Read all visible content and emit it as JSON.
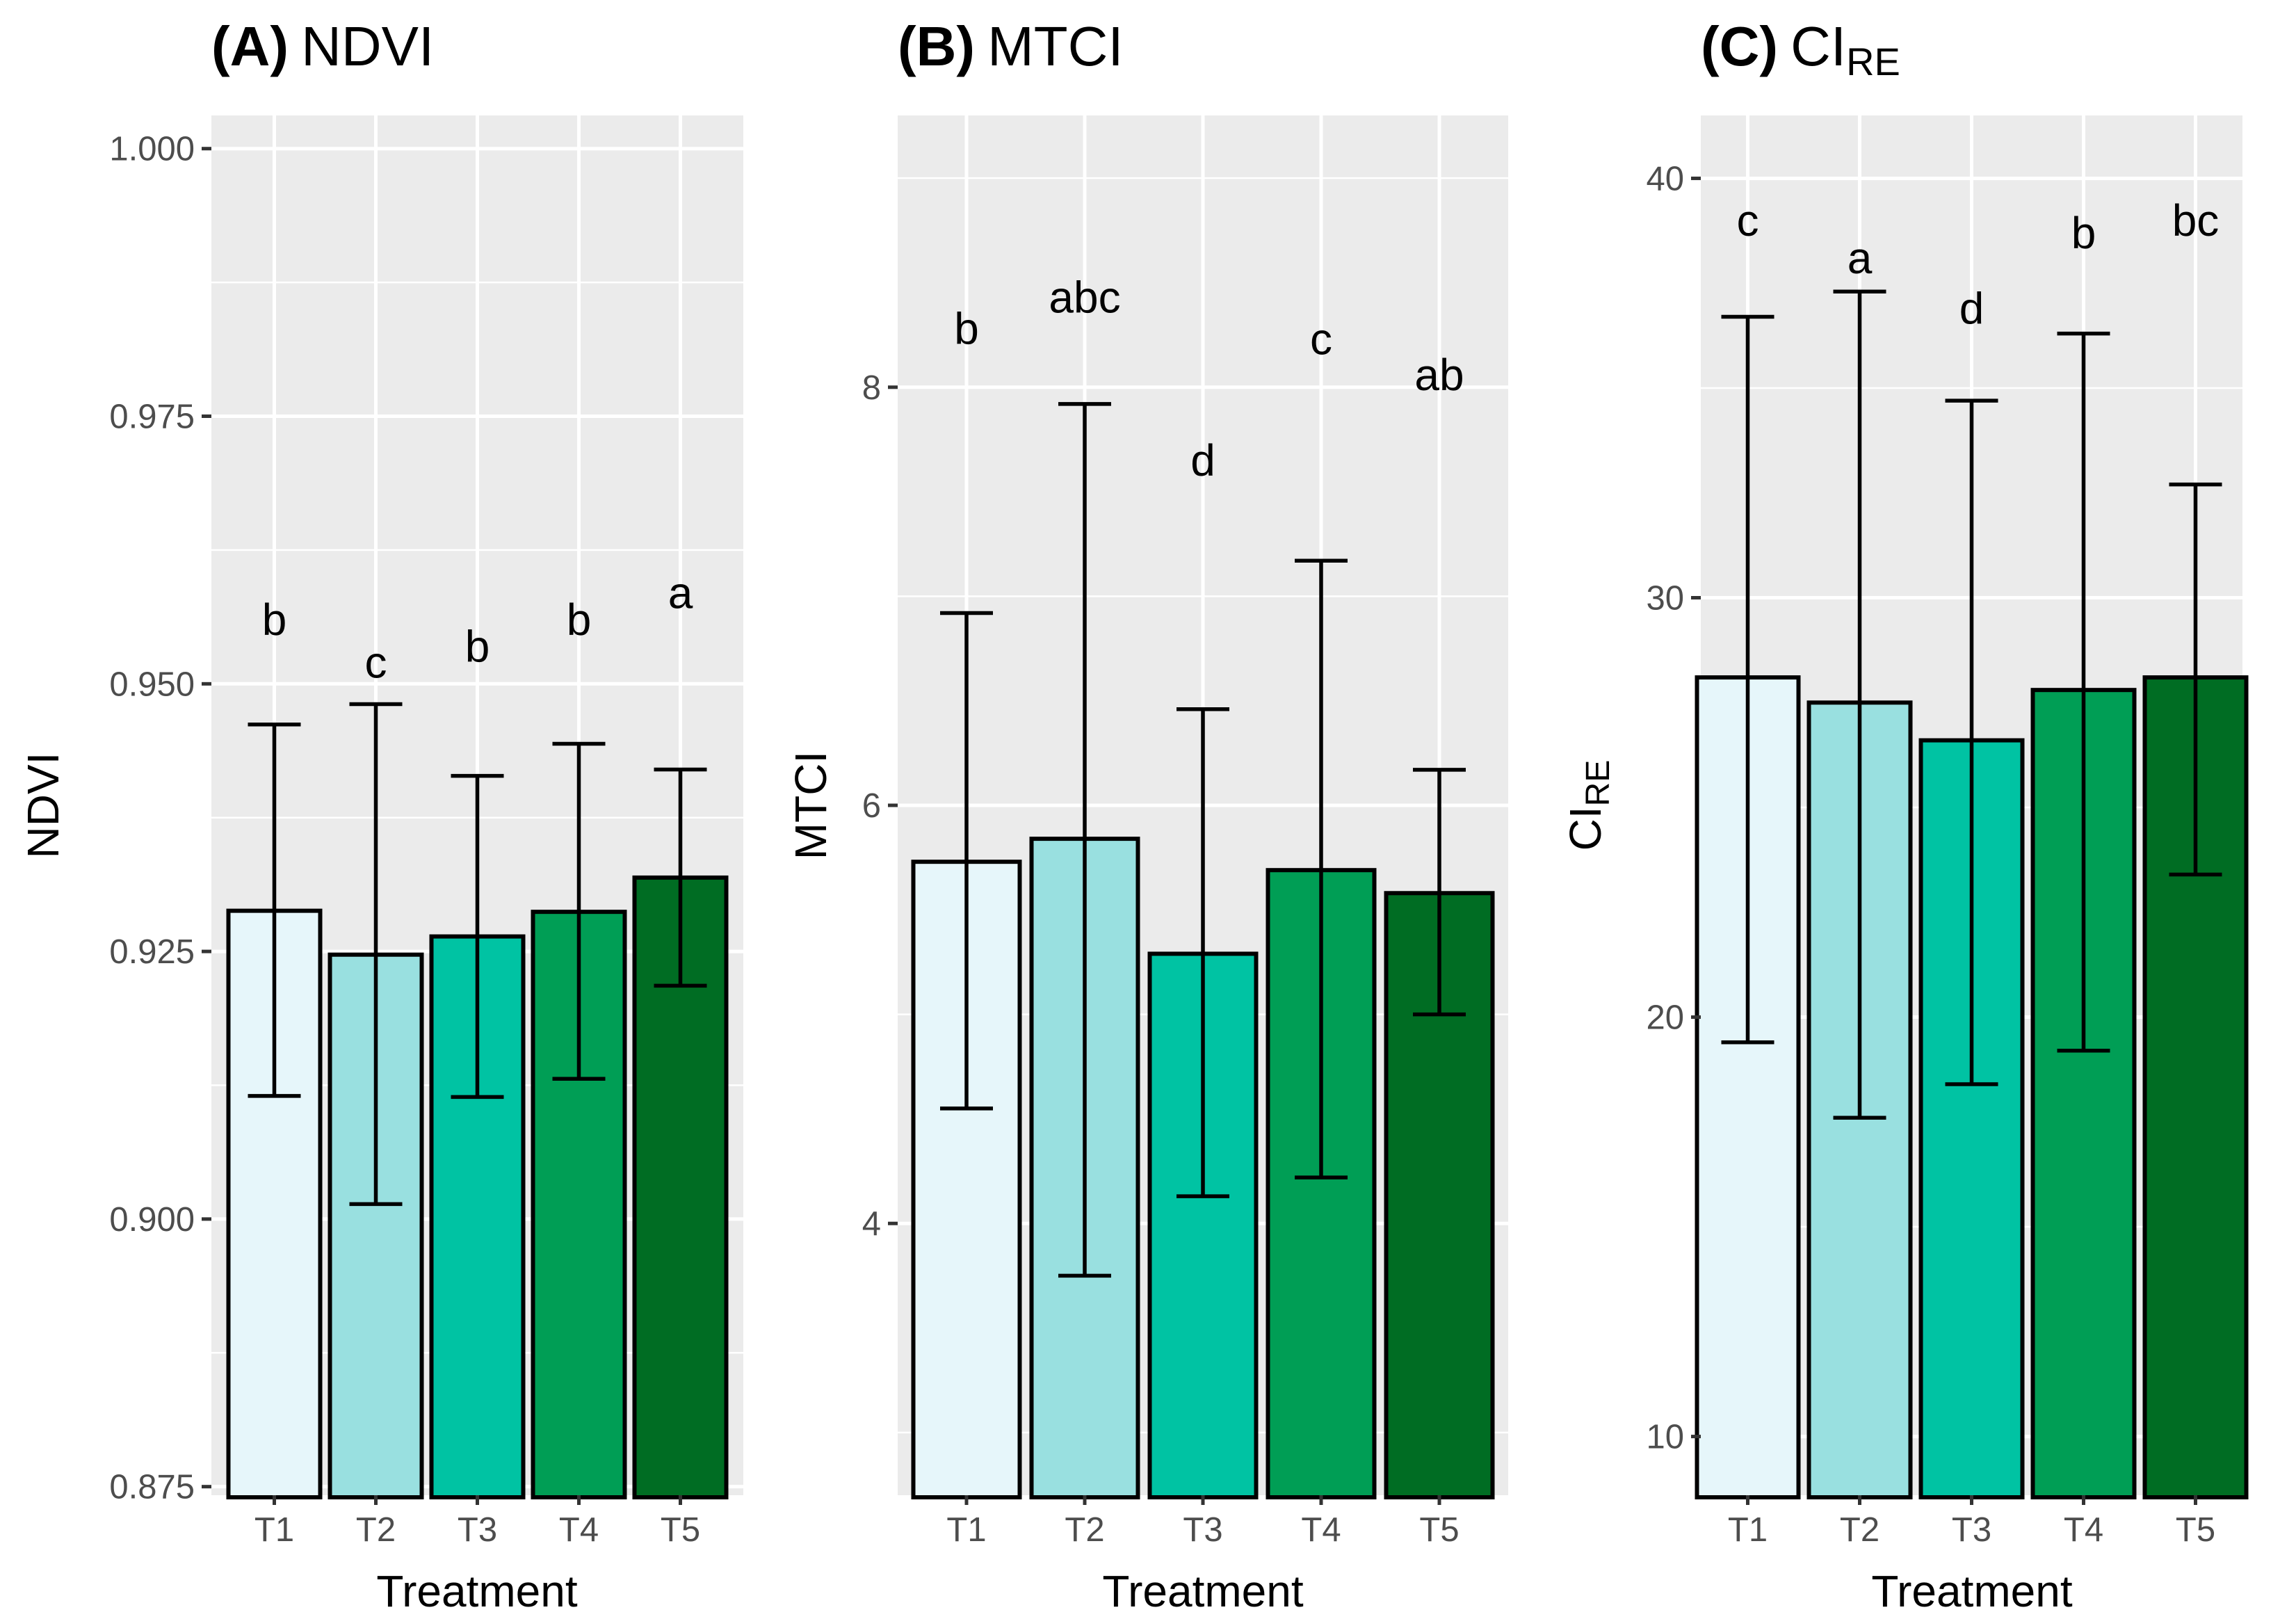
{
  "chart_data": [
    {
      "type": "bar",
      "panel_label": "(A)",
      "title": "NDVI",
      "title_subscript": "",
      "xlabel": "Treatment",
      "ylabel": "NDVI",
      "ylabel_subscript": "",
      "categories": [
        "T1",
        "T2",
        "T3",
        "T4",
        "T5"
      ],
      "values": [
        0.9288,
        0.9247,
        0.9264,
        0.9287,
        0.9319
      ],
      "error_low": [
        0.9115,
        0.9014,
        0.9114,
        0.9131,
        0.9218
      ],
      "error_high": [
        0.9462,
        0.9481,
        0.9414,
        0.9444,
        0.942
      ],
      "significance": [
        "b",
        "c",
        "b",
        "b",
        "a"
      ],
      "significance_y": [
        0.956,
        0.952,
        0.9535,
        0.956,
        0.9585
      ],
      "ylim": [
        0.8742,
        1.0031
      ],
      "yticks": [
        0.875,
        0.9,
        0.925,
        0.95,
        0.975,
        1.0
      ],
      "ytick_labels": [
        "0.875",
        "0.900",
        "0.925",
        "0.950",
        "0.975",
        "1.000"
      ],
      "bar_colors": [
        "#e6f6fa",
        "#99e0e0",
        "#00c3a3",
        "#009e55",
        "#006d23"
      ]
    },
    {
      "type": "bar",
      "panel_label": "(B)",
      "title": "MTCI",
      "title_subscript": "",
      "xlabel": "Treatment",
      "ylabel": "MTCI",
      "ylabel_subscript": "",
      "categories": [
        "T1",
        "T2",
        "T3",
        "T4",
        "T5"
      ],
      "values": [
        5.73,
        5.84,
        5.29,
        5.69,
        5.58
      ],
      "error_low": [
        4.55,
        3.75,
        4.13,
        4.22,
        5.0
      ],
      "error_high": [
        6.92,
        7.92,
        6.46,
        7.17,
        6.17
      ],
      "significance": [
        "b",
        "abc",
        "d",
        "c",
        "ab"
      ],
      "significance_y": [
        8.28,
        8.43,
        7.65,
        8.23,
        8.06
      ],
      "ylim": [
        2.7,
        9.3
      ],
      "yticks": [
        4,
        6,
        8
      ],
      "ytick_labels": [
        "4",
        "6",
        "8"
      ],
      "bar_colors": [
        "#e6f6fa",
        "#99e0e0",
        "#00c3a3",
        "#009e55",
        "#006d23"
      ]
    },
    {
      "type": "bar",
      "panel_label": "(C)",
      "title": "CI",
      "title_subscript": "RE",
      "xlabel": "Treatment",
      "ylabel": "CI",
      "ylabel_subscript": "RE",
      "categories": [
        "T1",
        "T2",
        "T3",
        "T4",
        "T5"
      ],
      "values": [
        28.1,
        27.5,
        26.6,
        27.8,
        28.1
      ],
      "error_low": [
        19.4,
        17.6,
        18.4,
        19.2,
        23.4
      ],
      "error_high": [
        36.7,
        37.3,
        34.7,
        36.3,
        32.7
      ],
      "significance": [
        "c",
        "a",
        "d",
        "b",
        "bc"
      ],
      "significance_y": [
        39.0,
        38.1,
        36.9,
        38.7,
        39.0
      ],
      "ylim": [
        8.6,
        41.5
      ],
      "yticks": [
        10,
        20,
        30,
        40
      ],
      "ytick_labels": [
        "10",
        "20",
        "30",
        "40"
      ],
      "bar_colors": [
        "#e6f6fa",
        "#99e0e0",
        "#00c3a3",
        "#009e55",
        "#006d23"
      ]
    }
  ]
}
